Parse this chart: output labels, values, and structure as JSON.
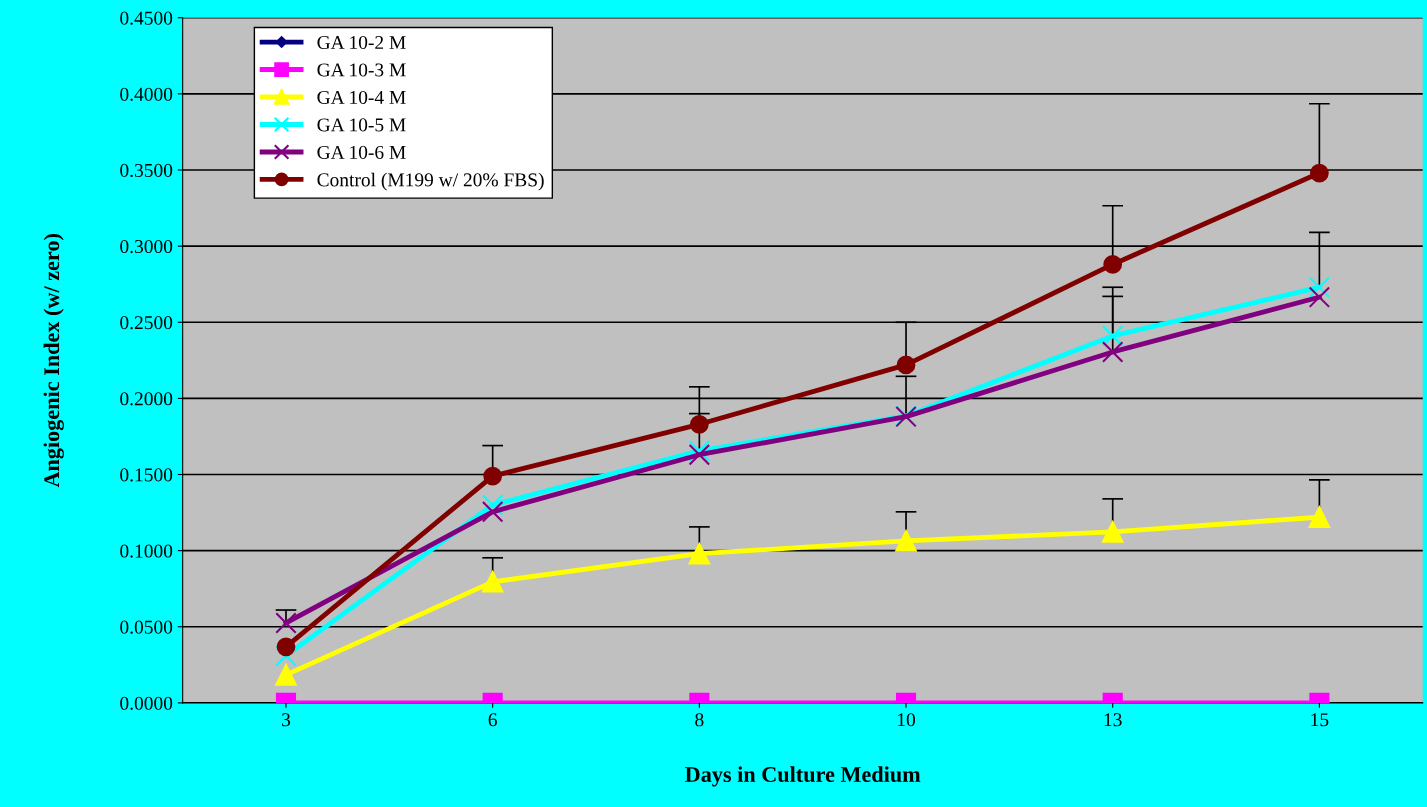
{
  "chart_data": {
    "type": "line",
    "xlabel": "Days in Culture Medium",
    "ylabel": "Angiogenic Index (w/ zero)",
    "categories": [
      "3",
      "6",
      "8",
      "10",
      "13",
      "15"
    ],
    "series": [
      {
        "name": "GA 10-2 M",
        "color": "#000080",
        "marker": "diamond",
        "values": [
          null,
          null,
          null,
          null,
          null,
          null
        ]
      },
      {
        "name": "GA 10-3 M",
        "color": "#ff00ff",
        "marker": "square",
        "values": [
          0,
          0,
          0,
          0,
          0,
          0
        ]
      },
      {
        "name": "GA 10-4 M",
        "color": "#ffff00",
        "marker": "triangle",
        "values": [
          0.0184,
          0.0795,
          0.098,
          0.1064,
          0.1123,
          0.122
        ],
        "errors": [
          null,
          [
            0.0795,
            0.0953
          ],
          [
            0.098,
            0.1156
          ],
          [
            0.1064,
            0.1255
          ],
          [
            0.1123,
            0.134
          ],
          [
            0.122,
            0.1465
          ]
        ]
      },
      {
        "name": "GA 10-5 M",
        "color": "#00ffff",
        "marker": "cross",
        "values": [
          0.031,
          0.13,
          0.1655,
          0.1885,
          0.241,
          0.273
        ],
        "errors": [
          null,
          null,
          [
            0.1655,
            0.19
          ],
          null,
          [
            0.241,
            0.273
          ],
          [
            0.273,
            0.309
          ]
        ]
      },
      {
        "name": "GA 10-6 M",
        "color": "#800080",
        "marker": "cross",
        "values": [
          0.0525,
          0.1255,
          0.163,
          0.188,
          0.2305,
          0.2665
        ],
        "errors": [
          [
            0.0525,
            0.061
          ],
          null,
          null,
          [
            0.188,
            0.2145
          ],
          [
            0.2305,
            0.267
          ],
          null
        ]
      },
      {
        "name": "Control (M199 w/ 20% FBS)",
        "color": "#800000",
        "marker": "circle",
        "values": [
          0.0368,
          0.149,
          0.183,
          0.222,
          0.288,
          0.348
        ],
        "errors": [
          null,
          [
            0.149,
            0.169
          ],
          [
            0.183,
            0.2076
          ],
          [
            0.222,
            0.25
          ],
          [
            0.288,
            0.3265
          ],
          [
            0.348,
            0.3935
          ]
        ]
      }
    ],
    "ylim": [
      0,
      0.45
    ],
    "yticks": [
      {
        "value": 0,
        "label": "0.0000"
      },
      {
        "value": 0.05,
        "label": "0.0500"
      },
      {
        "value": 0.1,
        "label": "0.1000"
      },
      {
        "value": 0.15,
        "label": "0.1500"
      },
      {
        "value": 0.2,
        "label": "0.2000"
      },
      {
        "value": 0.25,
        "label": "0.2500"
      },
      {
        "value": 0.3,
        "label": "0.3000"
      },
      {
        "value": 0.35,
        "label": "0.3500"
      },
      {
        "value": 0.4,
        "label": "0.4000"
      },
      {
        "value": 0.45,
        "label": "0.4500"
      }
    ],
    "grid": "y",
    "legend": "top left"
  }
}
